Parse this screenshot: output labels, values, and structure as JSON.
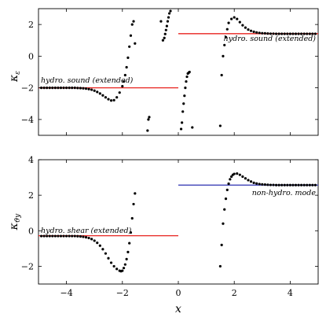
{
  "chart_data": [
    {
      "type": "scatter",
      "ylabel": "κ_ε",
      "xlabel": "",
      "xlim": [
        -5,
        5
      ],
      "ylim": [
        -5,
        3
      ],
      "yticks": [
        2,
        0,
        -2,
        -4
      ],
      "ytick_labels": [
        "2",
        "0",
        "−2",
        "−4"
      ],
      "xticks": [
        -4,
        -2,
        0,
        2,
        4
      ],
      "grid": false,
      "series": [
        {
          "marker": "dot",
          "color": "#000000",
          "x": [
            -4.9,
            -4.8,
            -4.7,
            -4.6,
            -4.5,
            -4.4,
            -4.3,
            -4.2,
            -4.1,
            -4.0,
            -3.9,
            -3.8,
            -3.7,
            -3.6,
            -3.5,
            -3.4,
            -3.3,
            -3.2,
            -3.1,
            -3.0,
            -2.9,
            -2.8,
            -2.7,
            -2.6,
            -2.5,
            -2.4,
            -2.3,
            -2.2,
            -2.1,
            -2.0,
            -1.95,
            -1.9,
            -1.85,
            -1.8,
            -1.75,
            -1.7,
            -1.65,
            -1.6,
            -1.55,
            -1.1,
            -1.07,
            -1.04,
            -0.62,
            -0.55,
            -0.5,
            -0.47,
            -0.44,
            -0.41,
            -0.38,
            -0.35,
            -0.32,
            -0.28,
            0.1,
            0.13,
            0.16,
            0.19,
            0.22,
            0.25,
            0.28,
            0.31,
            0.34,
            0.37,
            0.4,
            0.5,
            1.5,
            1.55,
            1.6,
            1.65,
            1.7,
            1.75,
            1.8,
            1.9,
            2.0,
            2.1,
            2.2,
            2.3,
            2.4,
            2.5,
            2.6,
            2.7,
            2.8,
            2.9,
            3.0,
            3.1,
            3.2,
            3.3,
            3.4,
            3.5,
            3.6,
            3.7,
            3.8,
            3.9,
            4.0,
            4.1,
            4.2,
            4.3,
            4.4,
            4.5,
            4.6,
            4.7,
            4.8,
            4.9
          ],
          "y": [
            -2.0,
            -2.0,
            -2.0,
            -2.0,
            -2.0,
            -2.0,
            -2.0,
            -2.0,
            -2.0,
            -2.0,
            -2.0,
            -2.0,
            -2.0,
            -2.01,
            -2.02,
            -2.03,
            -2.05,
            -2.08,
            -2.12,
            -2.18,
            -2.26,
            -2.36,
            -2.48,
            -2.6,
            -2.72,
            -2.8,
            -2.78,
            -2.6,
            -2.3,
            -1.9,
            -1.6,
            -1.2,
            -0.7,
            -0.1,
            0.6,
            1.3,
            2.0,
            2.2,
            0.8,
            -4.7,
            -4.0,
            -3.85,
            2.2,
            1.0,
            1.15,
            1.4,
            1.65,
            1.9,
            2.2,
            2.45,
            2.7,
            2.85,
            -4.6,
            -4.2,
            -3.5,
            -3.0,
            -2.5,
            -2.0,
            -1.6,
            -1.3,
            -1.1,
            -1.05,
            -1.0,
            -4.5,
            -4.4,
            -1.2,
            0.0,
            0.7,
            1.2,
            1.7,
            2.1,
            2.35,
            2.45,
            2.35,
            2.15,
            1.95,
            1.8,
            1.68,
            1.6,
            1.54,
            1.5,
            1.47,
            1.45,
            1.44,
            1.43,
            1.42,
            1.42,
            1.41,
            1.41,
            1.41,
            1.41,
            1.41,
            1.41,
            1.41,
            1.41,
            1.41,
            1.41,
            1.41,
            1.41,
            1.41,
            1.41,
            1.41
          ]
        }
      ],
      "reference_lines": [
        {
          "x": [
            -5,
            0
          ],
          "y": -2.0,
          "color": "#e8231f"
        },
        {
          "x": [
            0,
            5
          ],
          "y": 1.42,
          "color": "#e8231f"
        }
      ],
      "annotations": [
        {
          "text": "hydro. sound (extended)",
          "x": -4.95,
          "y": -1.75
        },
        {
          "text": "hydro. sound (extended)",
          "x": 4.95,
          "y": 1.0
        }
      ]
    },
    {
      "type": "scatter",
      "ylabel": "κ_ϑy",
      "xlabel": "x",
      "xlim": [
        -5,
        5
      ],
      "ylim": [
        -3,
        4
      ],
      "yticks": [
        4,
        2,
        0,
        -2
      ],
      "ytick_labels": [
        "4",
        "2",
        "0",
        "−2"
      ],
      "xticks": [
        -4,
        -2,
        0,
        2,
        4
      ],
      "xtick_labels": [
        "−4",
        "−2",
        "0",
        "2",
        "4"
      ],
      "grid": false,
      "series": [
        {
          "marker": "dot",
          "color": "#000000",
          "x": [
            -4.9,
            -4.8,
            -4.7,
            -4.6,
            -4.5,
            -4.4,
            -4.3,
            -4.2,
            -4.1,
            -4.0,
            -3.9,
            -3.8,
            -3.7,
            -3.6,
            -3.5,
            -3.4,
            -3.3,
            -3.2,
            -3.1,
            -3.0,
            -2.9,
            -2.8,
            -2.7,
            -2.6,
            -2.5,
            -2.4,
            -2.3,
            -2.2,
            -2.1,
            -2.05,
            -2.0,
            -1.95,
            -1.9,
            -1.85,
            -1.8,
            -1.75,
            -1.7,
            -1.65,
            -1.6,
            -1.55,
            1.5,
            1.55,
            1.6,
            1.65,
            1.7,
            1.75,
            1.8,
            1.85,
            1.9,
            1.95,
            2.0,
            2.1,
            2.2,
            2.3,
            2.4,
            2.5,
            2.6,
            2.7,
            2.8,
            2.9,
            3.0,
            3.1,
            3.2,
            3.3,
            3.4,
            3.5,
            3.6,
            3.7,
            3.8,
            3.9,
            4.0,
            4.1,
            4.2,
            4.3,
            4.4,
            4.5,
            4.6,
            4.7,
            4.8,
            4.9
          ],
          "y": [
            -0.3,
            -0.3,
            -0.3,
            -0.3,
            -0.3,
            -0.3,
            -0.3,
            -0.3,
            -0.3,
            -0.3,
            -0.3,
            -0.3,
            -0.3,
            -0.31,
            -0.32,
            -0.34,
            -0.37,
            -0.41,
            -0.47,
            -0.56,
            -0.68,
            -0.84,
            -1.04,
            -1.28,
            -1.55,
            -1.8,
            -2.0,
            -2.15,
            -2.25,
            -2.28,
            -2.25,
            -2.1,
            -1.9,
            -1.6,
            -1.2,
            -0.7,
            -0.1,
            0.7,
            1.5,
            2.1,
            -2.0,
            -0.8,
            0.4,
            1.2,
            1.8,
            2.3,
            2.65,
            2.9,
            3.05,
            3.15,
            3.2,
            3.22,
            3.15,
            3.05,
            2.95,
            2.85,
            2.77,
            2.7,
            2.66,
            2.63,
            2.61,
            2.6,
            2.59,
            2.58,
            2.58,
            2.57,
            2.57,
            2.57,
            2.57,
            2.57,
            2.57,
            2.57,
            2.57,
            2.57,
            2.57,
            2.57,
            2.57,
            2.57,
            2.57,
            2.57
          ]
        }
      ],
      "reference_lines": [
        {
          "x": [
            -5,
            0
          ],
          "y": -0.28,
          "color": "#e8231f"
        },
        {
          "x": [
            0,
            5
          ],
          "y": 2.57,
          "color": "#2b2fb0"
        }
      ],
      "annotations": [
        {
          "text": "hydro. shear (extended)",
          "x": -4.95,
          "y": 0.05
        },
        {
          "text": "non-hydro. mode",
          "x": 4.95,
          "y": 2.0
        }
      ]
    }
  ]
}
